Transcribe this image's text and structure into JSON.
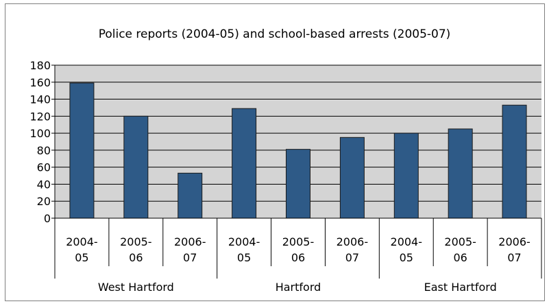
{
  "chart_data": {
    "type": "bar",
    "title": "Police reports (2004-05) and school-based arrests (2005-07)",
    "xlabel": "",
    "ylabel": "",
    "ylim": [
      0,
      180
    ],
    "yticks": [
      0,
      20,
      40,
      60,
      80,
      100,
      120,
      140,
      160,
      180
    ],
    "grid": true,
    "legend": "none",
    "groups": [
      {
        "name": "West Hartford",
        "categories": [
          [
            "2004-",
            "05"
          ],
          [
            "2005-",
            "06"
          ],
          [
            "2006-",
            "07"
          ]
        ],
        "values": [
          159,
          120,
          53
        ]
      },
      {
        "name": "Hartford",
        "categories": [
          [
            "2004-",
            "05"
          ],
          [
            "2005-",
            "06"
          ],
          [
            "2006-",
            "07"
          ]
        ],
        "values": [
          129,
          81,
          95
        ]
      },
      {
        "name": "East Hartford",
        "categories": [
          [
            "2004-",
            "05"
          ],
          [
            "2005-",
            "06"
          ],
          [
            "2006-",
            "07"
          ]
        ],
        "values": [
          100,
          105,
          133
        ]
      }
    ],
    "colors": {
      "bar": "#2e5a87",
      "bar_outline": "#1a1a1a",
      "plot_bg": "#d4d4d4",
      "grid": "#000000",
      "axis": "#000000"
    }
  }
}
